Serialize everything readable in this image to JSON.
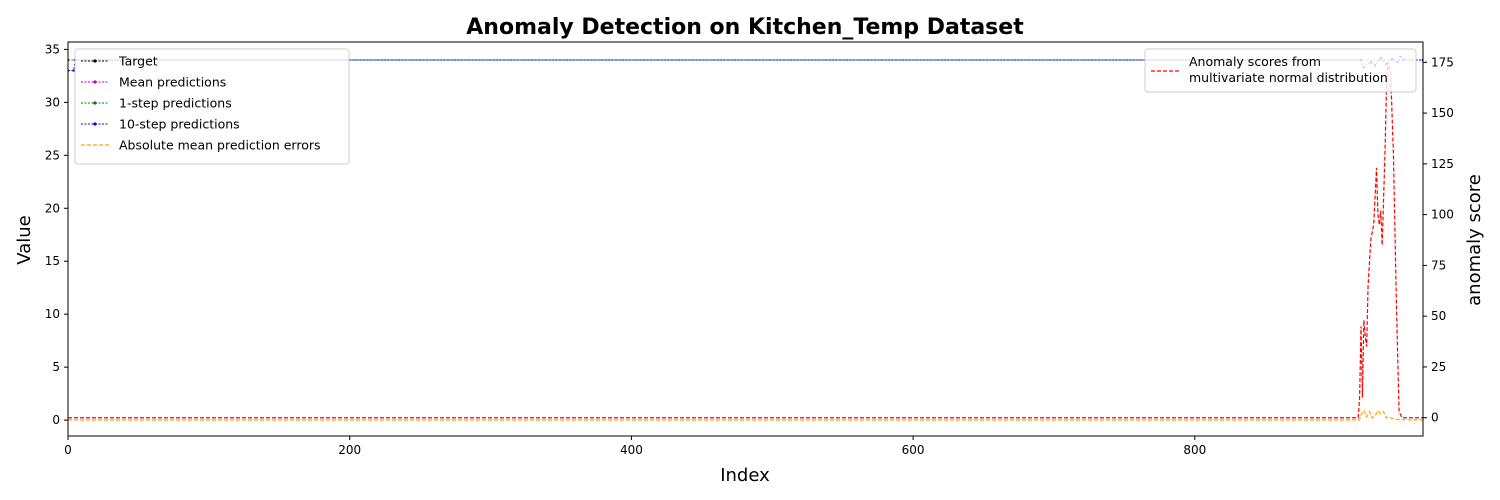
{
  "chart_data": {
    "type": "line",
    "title": "Anomaly Detection on Kitchen_Temp Dataset",
    "xlabel": "Index",
    "ylabel": "Value",
    "y2label": "anomaly score",
    "xlim": [
      0,
      962
    ],
    "ylim": [
      -1.5,
      35.7
    ],
    "y2lim": [
      -9,
      185
    ],
    "xticks": [
      0,
      200,
      400,
      600,
      800
    ],
    "yticks": [
      0,
      5,
      10,
      15,
      20,
      25,
      30,
      35
    ],
    "y2ticks": [
      0,
      25,
      50,
      75,
      100,
      125,
      150,
      175
    ],
    "grid": false,
    "legend_left_position": "upper-left",
    "legend_right_position": "upper-right",
    "series": [
      {
        "name": "Target",
        "axis": "left",
        "color": "#000000",
        "style": "dotted-line-with-markers",
        "x": [
          0,
          962
        ],
        "values": [
          34.0,
          34.0
        ]
      },
      {
        "name": "Mean predictions",
        "axis": "left",
        "color": "#bf00bf",
        "style": "dotted-line-with-markers",
        "x": [
          0,
          962
        ],
        "values": [
          34.0,
          34.0
        ]
      },
      {
        "name": "1-step predictions",
        "axis": "left",
        "color": "#008000",
        "style": "dotted-line-with-markers",
        "x": [
          0,
          962
        ],
        "values": [
          34.0,
          34.0
        ]
      },
      {
        "name": "10-step predictions",
        "axis": "left",
        "color": "#0000ff",
        "style": "dotted-line-with-markers",
        "x": [
          0,
          4,
          5,
          918,
          920,
          925,
          928,
          932,
          936,
          940,
          944,
          946,
          948,
          962
        ],
        "values": [
          33.0,
          33.0,
          34.0,
          34.0,
          33.3,
          33.8,
          33.5,
          34.2,
          33.6,
          34.1,
          33.8,
          34.3,
          34.0,
          34.0
        ]
      },
      {
        "name": "Absolute mean prediction errors",
        "axis": "left",
        "color": "#ffa500",
        "style": "dashed",
        "x": [
          0,
          917,
          918,
          920,
          922,
          924,
          926,
          928,
          930,
          932,
          934,
          936,
          938,
          940,
          945,
          962
        ],
        "values": [
          0.02,
          0.02,
          0.5,
          0.9,
          0.3,
          0.8,
          0.2,
          0.4,
          0.9,
          0.6,
          0.8,
          0.2,
          0.3,
          0.15,
          0.03,
          0.02
        ]
      },
      {
        "name": "Anomaly scores from multivariate normal distribution",
        "axis": "right",
        "color": "#ff0000",
        "style": "dashed",
        "x": [
          0,
          916,
          917,
          918,
          919,
          920,
          921,
          922,
          923,
          925,
          927,
          929,
          930,
          931,
          932,
          933,
          935,
          936,
          937,
          939,
          941,
          943,
          945,
          947,
          949,
          962
        ],
        "values": [
          0,
          0,
          10,
          45,
          10,
          48,
          40,
          35,
          65,
          88,
          95,
          123,
          100,
          95,
          102,
          85,
          130,
          160,
          175,
          170,
          130,
          60,
          3,
          0,
          0,
          0
        ]
      }
    ]
  },
  "legend_left": [
    {
      "label": "Target",
      "color": "#000000",
      "style": "dotted-line-with-markers"
    },
    {
      "label": "Mean predictions",
      "color": "#bf00bf",
      "style": "dotted-line-with-markers"
    },
    {
      "label": "1-step predictions",
      "color": "#008000",
      "style": "dotted-line-with-markers"
    },
    {
      "label": "10-step predictions",
      "color": "#0000ff",
      "style": "dotted-line-with-markers"
    },
    {
      "label": "Absolute mean prediction errors",
      "color": "#ffa500",
      "style": "dashed"
    }
  ],
  "legend_right": [
    {
      "lines": [
        "Anomaly scores from",
        "multivariate normal distribution"
      ],
      "color": "#ff0000",
      "style": "dashed"
    }
  ]
}
